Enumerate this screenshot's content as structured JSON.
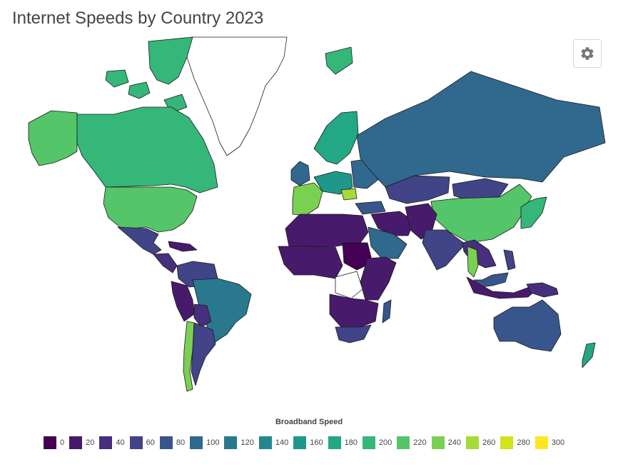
{
  "title": "Internet Speeds by Country 2023",
  "settings_icon": "gear-icon",
  "legend": {
    "title": "Broadband Speed",
    "bins": [
      {
        "label": "0",
        "color": "#440154"
      },
      {
        "label": "20",
        "color": "#481a6c"
      },
      {
        "label": "40",
        "color": "#472f7d"
      },
      {
        "label": "60",
        "color": "#414487"
      },
      {
        "label": "80",
        "color": "#39568c"
      },
      {
        "label": "100",
        "color": "#31688e"
      },
      {
        "label": "120",
        "color": "#2a788e"
      },
      {
        "label": "140",
        "color": "#23888e"
      },
      {
        "label": "160",
        "color": "#1f988b"
      },
      {
        "label": "180",
        "color": "#22a884"
      },
      {
        "label": "200",
        "color": "#35b779"
      },
      {
        "label": "220",
        "color": "#54c568"
      },
      {
        "label": "240",
        "color": "#7ad151"
      },
      {
        "label": "260",
        "color": "#a5db36"
      },
      {
        "label": "280",
        "color": "#d2e21b"
      },
      {
        "label": "300",
        "color": "#fde725"
      }
    ]
  },
  "map_data": {
    "colors": {
      "canada": "#35b779",
      "usa": "#54c568",
      "alaska": "#54c568",
      "greenland": "#ffffff",
      "arctic_islands": "#35b779",
      "iceland": "#35b779",
      "mexico": "#414487",
      "central_america": "#472f7d",
      "caribbean": "#481a6c",
      "colombia_venezuela": "#414487",
      "peru_ecuador": "#481a6c",
      "bolivia": "#472f7d",
      "brazil": "#2a788e",
      "chile": "#7ad151",
      "argentina": "#414487",
      "france_spain": "#7ad151",
      "uk_ireland": "#31688e",
      "scandinavia": "#22a884",
      "central_europe": "#1f988b",
      "romania": "#a5db36",
      "eastern_europe": "#31688e",
      "russia": "#31688e",
      "kazakhstan": "#414487",
      "mongolia": "#414487",
      "china": "#54c568",
      "korea_japan": "#35b779",
      "india": "#414487",
      "pakistan_afghanistan": "#481a6c",
      "middle_east": "#481a6c",
      "saudi_arabia": "#31688e",
      "turkey": "#39568c",
      "north_africa": "#481a6c",
      "west_africa": "#481a6c",
      "sudan": "#440154",
      "east_africa": "#481a6c",
      "southern_africa": "#481a6c",
      "south_africa": "#414487",
      "madagascar": "#39568c",
      "congo": "#ffffff",
      "se_asia_thailand": "#7ad151",
      "se_asia_mainland": "#472f7d",
      "indonesia": "#481a6c",
      "malaysia": "#39568c",
      "papua": "#472f7d",
      "philippines": "#414487",
      "australia": "#39568c",
      "new_zealand": "#22a884"
    }
  }
}
